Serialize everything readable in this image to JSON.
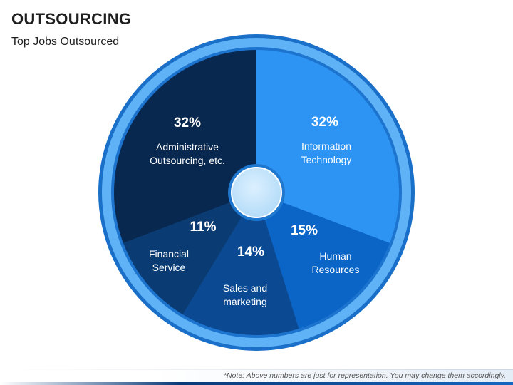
{
  "header": {
    "title": "OUTSOURCING",
    "subtitle": "Top Jobs Outsourced"
  },
  "footer": {
    "note": "*Note: Above numbers are just for representation. You may change them accordingly."
  },
  "chart_data": {
    "type": "pie",
    "title": "Top Jobs Outsourced",
    "unit": "%",
    "slices": [
      {
        "label_lines": [
          "Information",
          "Technology"
        ],
        "value": 32,
        "display": "32%",
        "color": "#2d94f4"
      },
      {
        "label_lines": [
          "Human",
          "Resources"
        ],
        "value": 15,
        "display": "15%",
        "color": "#0b65c6"
      },
      {
        "label_lines": [
          "Sales and",
          "marketing"
        ],
        "value": 14,
        "display": "14%",
        "color": "#0b4a92"
      },
      {
        "label_lines": [
          "Financial",
          "Service"
        ],
        "value": 11,
        "display": "11%",
        "color": "#0a3b73"
      },
      {
        "label_lines": [
          "Administrative",
          "Outsourcing, etc."
        ],
        "value": 32,
        "display": "32%",
        "color": "#082850"
      }
    ],
    "ring_color": "#5fb2f5",
    "center_color": "#c3e3fb"
  }
}
